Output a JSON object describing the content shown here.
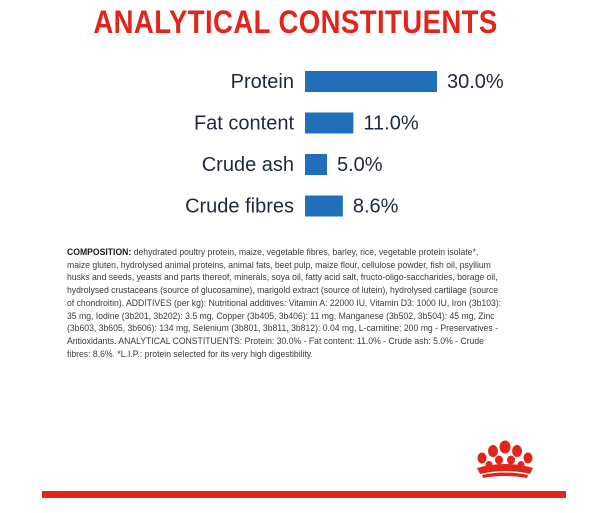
{
  "title": "ANALYTICAL CONSTITUENTS",
  "chart_data": {
    "type": "bar",
    "orientation": "horizontal",
    "categories": [
      "Protein",
      "Fat content",
      "Crude ash",
      "Crude fibres"
    ],
    "values": [
      30.0,
      11.0,
      5.0,
      8.6
    ],
    "value_labels": [
      "30.0%",
      "11.0%",
      "5.0%",
      "8.6%"
    ],
    "unit": "%",
    "bar_color": "#1f6fba",
    "grid": false,
    "legend": "none"
  },
  "composition": {
    "label": "COMPOSITION:",
    "text": " dehydrated poultry protein, maize, vegetable fibres, barley, rice, vegetable protein isolate*, maize gluten, hydrolysed animal proteins, animal fats, beet pulp, maize flour, cellulose powder, fish oil, psyllium husks and seeds, yeasts and parts thereof, minerals, soya oil, fatty acid salt, fructo-oligo-saccharides, borage oil, hydrolysed crustaceans (source of glucosamine), marigold extract (source of lutein), hydrolysed cartilage (source of chondroitin). ADDITIVES (per kg): Nutritional additives: Vitamin A: 22000 IU, Vitamin D3: 1000 IU, Iron (3b103): 35 mg, Iodine (3b201, 3b202): 3.5 mg, Copper (3b405, 3b406): 11 mg, Manganese (3b502, 3b504): 45 mg, Zinc (3b603, 3b605, 3b606): 134 mg, Selenium (3b801, 3b811, 3b812): 0.04 mg, L-carnitine: 200 mg - Preservatives - Antioxidants. ANALYTICAL CONSTITUENTS: Protein: 30.0% - Fat content: 11.0% - Crude ash: 5.0% - Crude fibres: 8.6%. *L.I.P.: protein selected for its very high digestibility."
  },
  "colors": {
    "accent": "#e1251b",
    "bar": "#1f6fba"
  },
  "logo": "royal-canin-crown-icon"
}
